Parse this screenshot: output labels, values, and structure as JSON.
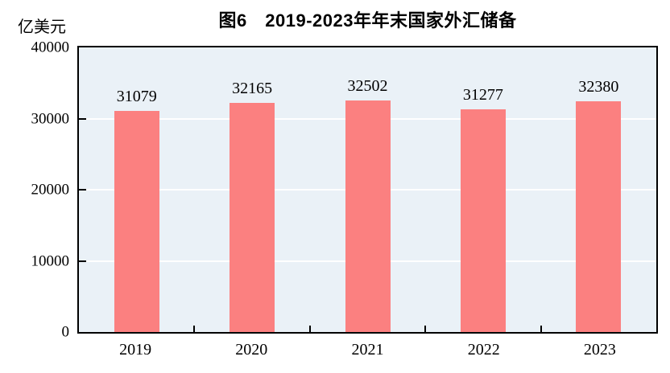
{
  "title": "图6　2019-2023年年末国家外汇储备",
  "unit_label": "亿美元",
  "colors": {
    "bar": "#FB8080",
    "plot_background": "#EAF1F7",
    "gridline": "#FFFFFF",
    "axis": "#000000",
    "text": "#000000",
    "page_background": "#FFFFFF"
  },
  "chart_data": {
    "type": "bar",
    "title": "图6　2019-2023年年末国家外汇储备",
    "ylabel": "亿美元",
    "categories": [
      "2019",
      "2020",
      "2021",
      "2022",
      "2023"
    ],
    "values": [
      31079,
      32165,
      32502,
      31277,
      32380
    ],
    "bar_labels": [
      "31079",
      "32165",
      "32502",
      "31277",
      "32380"
    ],
    "ylim": [
      0,
      40000
    ],
    "yticks": [
      0,
      10000,
      20000,
      30000,
      40000
    ],
    "ytick_labels": [
      "0",
      "10000",
      "20000",
      "30000",
      "40000"
    ],
    "grid": true,
    "gridlines_at": [
      10000,
      20000,
      30000
    ],
    "legend": "none"
  }
}
